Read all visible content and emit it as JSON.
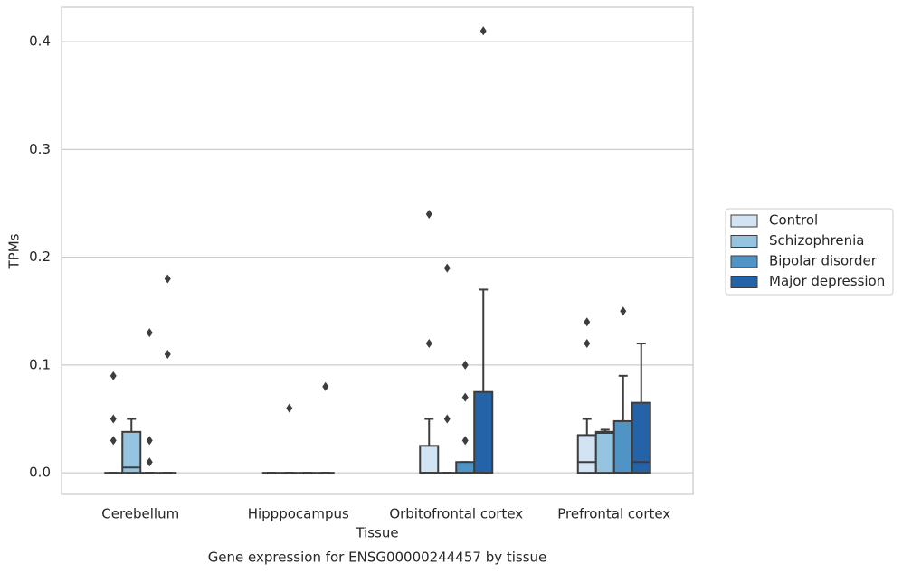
{
  "chart_data": {
    "type": "box",
    "title": "Gene expression for ENSG00000244457 by tissue",
    "xlabel": "Tissue",
    "ylabel": "TPMs",
    "categories": [
      "Cerebellum",
      "Hipppocampus",
      "Orbitofrontal cortex",
      "Prefrontal cortex"
    ],
    "ylim": [
      -0.02,
      0.432
    ],
    "yticks": [
      {
        "value": 0,
        "label": "0.0"
      },
      0.1,
      0.2,
      0.3,
      0.4
    ],
    "grid": true,
    "legend": "right",
    "series": [
      {
        "name": "Control",
        "color": "#d2e3f3",
        "whislo": [
          0,
          0,
          0,
          0
        ],
        "q1": [
          0,
          0,
          0,
          0
        ],
        "median": [
          0,
          0,
          0,
          0.01
        ],
        "q3": [
          0,
          0,
          0.025,
          0.035
        ],
        "whishi": [
          0,
          0,
          0.05,
          0.05
        ],
        "fliers": [
          [
            0.09,
            0.05,
            0.03
          ],
          [],
          [
            0.24,
            0.12
          ],
          [
            0.14,
            0.12
          ]
        ]
      },
      {
        "name": "Schizophrenia",
        "color": "#94c4df",
        "whislo": [
          0,
          0,
          0,
          0
        ],
        "q1": [
          0,
          0,
          0,
          0
        ],
        "median": [
          0.005,
          0,
          0,
          0.037
        ],
        "q3": [
          0.038,
          0,
          0,
          0.038
        ],
        "whishi": [
          0.05,
          0,
          0,
          0.04
        ],
        "fliers": [
          [],
          [
            0.06
          ],
          [
            0.19,
            0.05
          ],
          []
        ]
      },
      {
        "name": "Bipolar disorder",
        "color": "#4f94c4",
        "whislo": [
          0,
          0,
          0,
          0
        ],
        "q1": [
          0,
          0,
          0,
          0
        ],
        "median": [
          0,
          0,
          0,
          0
        ],
        "q3": [
          0,
          0,
          0.01,
          0.048
        ],
        "whishi": [
          0,
          0,
          0.01,
          0.09
        ],
        "fliers": [
          [
            0.13,
            0.03,
            0.01
          ],
          [],
          [
            0.1,
            0.07,
            0.03
          ],
          [
            0.15
          ]
        ]
      },
      {
        "name": "Major depression",
        "color": "#2563a8",
        "whislo": [
          0,
          0,
          0,
          0
        ],
        "q1": [
          0,
          0,
          0,
          0
        ],
        "median": [
          0,
          0,
          0,
          0.01
        ],
        "q3": [
          0,
          0,
          0.075,
          0.065
        ],
        "whishi": [
          0,
          0,
          0.17,
          0.12
        ],
        "fliers": [
          [
            0.18,
            0.11
          ],
          [
            0.08
          ],
          [
            0.41
          ],
          []
        ]
      }
    ]
  }
}
